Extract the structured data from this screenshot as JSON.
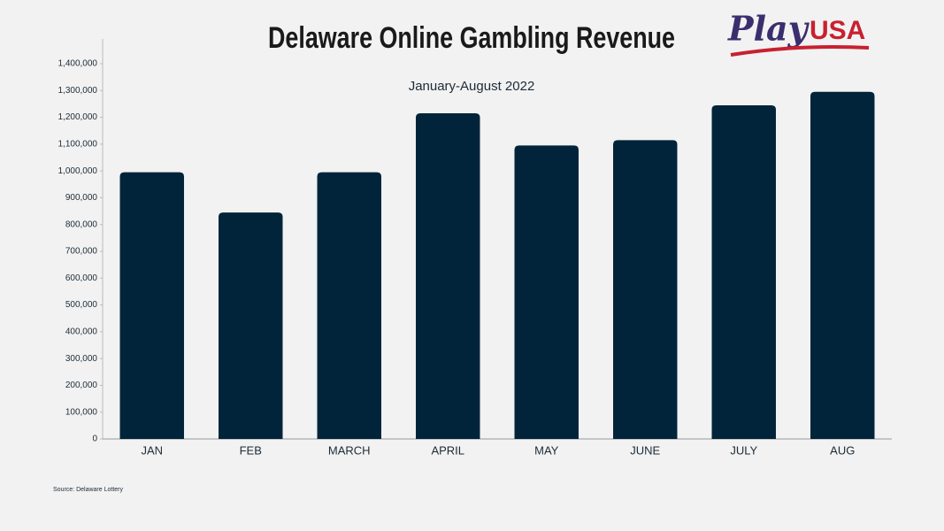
{
  "chart_data": {
    "type": "bar",
    "title": "Delaware Online Gambling Revenue",
    "subtitle": "January-August 2022",
    "categories": [
      "JAN",
      "FEB",
      "MARCH",
      "APRIL",
      "MAY",
      "JUNE",
      "JULY",
      "AUG"
    ],
    "values": [
      995000,
      845000,
      995000,
      1215000,
      1095000,
      1115000,
      1245000,
      1295000
    ],
    "color": "#01243a",
    "ylim": [
      0,
      1400000
    ],
    "yticks": [
      0,
      {
        "value": 100000,
        "label": "100,000"
      },
      {
        "value": 200000,
        "label": "200,000"
      },
      {
        "value": 300000,
        "label": "300,000"
      },
      {
        "value": 400000,
        "label": "400,000"
      },
      {
        "value": 500000,
        "label": "500,000"
      },
      {
        "value": 600000,
        "label": "600,000"
      },
      {
        "value": 700000,
        "label": "700,000"
      },
      {
        "value": 800000,
        "label": "800,000"
      },
      {
        "value": 900000,
        "label": "900,000"
      },
      {
        "value": 1000000,
        "label": "1,000,000"
      },
      {
        "value": 1100000,
        "label": "1,100,000"
      },
      {
        "value": 1200000,
        "label": "1,200,000"
      },
      {
        "value": 1300000,
        "label": "1,300,000"
      },
      {
        "value": 1400000,
        "label": "1,400,000"
      }
    ],
    "grid": false,
    "source": "Source: Delaware Lottery"
  },
  "logo": {
    "part1": "Play",
    "part2": "USA"
  }
}
